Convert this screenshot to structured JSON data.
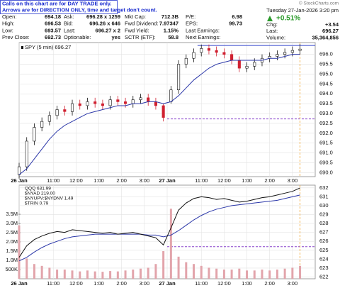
{
  "header": {
    "notice": [
      "Calls on this chart are for DAY TRADE only.",
      "Arrows are for DIRECTION ONLY, time and target don't count."
    ],
    "copyright": "© StockCharts.com",
    "date": "Tuesday  27-Jan-2026  3:20 pm",
    "change_pct": "+0.51%",
    "columns": [
      [
        [
          "Open:",
          "694.18"
        ],
        [
          "High:",
          "696.53"
        ],
        [
          "Low:",
          "693.57"
        ],
        [
          "Prev Close:",
          "692.73"
        ]
      ],
      [
        [
          "Ask:",
          "696.28 x 1259"
        ],
        [
          "Bid:",
          "696.26 x 646"
        ],
        [
          "Last:",
          "696.27 x 2"
        ],
        [
          "Optionable:",
          "yes"
        ]
      ],
      [
        [
          "Mkt Cap:",
          "712.3B"
        ],
        [
          "Fwd Dividend:",
          "7.97347"
        ],
        [
          "Fwd Yield:",
          "1.15%"
        ],
        [
          "SCTR (ETF):",
          "58.8"
        ]
      ],
      [
        [
          "P/E:",
          "6.98"
        ],
        [
          "EPS:",
          "99.73"
        ],
        [
          "Last Earnings:",
          ""
        ],
        [
          "Next Earnings:",
          ""
        ]
      ]
    ],
    "right_rows": [
      [
        "Chg:",
        "+3.54"
      ],
      [
        "Last:",
        "696.27"
      ],
      [
        "Volume:",
        "35,364,856"
      ]
    ]
  },
  "chart_data": [
    {
      "type": "candlestick",
      "legend": "SPY (5 min) 696.27",
      "x": [
        0,
        4,
        8,
        12,
        16,
        20,
        24,
        28,
        32,
        36,
        40,
        44,
        48,
        52,
        56,
        60,
        64,
        68,
        72,
        76,
        80,
        84,
        88,
        92,
        96,
        100,
        104,
        108,
        112,
        116,
        120,
        124,
        128,
        132,
        136,
        140,
        144,
        148
      ],
      "open": [
        689.9,
        690.3,
        691.6,
        692.3,
        692.6,
        692.9,
        693.2,
        693.1,
        693.5,
        693.4,
        693.6,
        693.5,
        693.4,
        693.7,
        693.6,
        693.5,
        693.7,
        693.8,
        693.6,
        693.4,
        693.6,
        694.2,
        695.5,
        695.8,
        696.1,
        696.3,
        696.2,
        696.1,
        696.0,
        695.7,
        695.3,
        695.4,
        695.6,
        695.8,
        695.9,
        696.0,
        696.1,
        696.2
      ],
      "high": [
        690.5,
        691.8,
        692.5,
        692.8,
        693.1,
        693.4,
        693.4,
        693.7,
        693.7,
        693.8,
        693.8,
        693.7,
        693.9,
        693.9,
        693.8,
        693.9,
        694.0,
        694.0,
        693.8,
        693.5,
        694.4,
        695.7,
        696.0,
        696.3,
        696.5,
        696.5,
        696.4,
        696.3,
        696.2,
        695.9,
        695.6,
        695.8,
        696.0,
        696.1,
        696.2,
        696.3,
        696.4,
        696.53
      ],
      "low": [
        689.7,
        690.1,
        691.4,
        692.1,
        692.4,
        692.7,
        692.9,
        692.9,
        693.2,
        693.2,
        693.3,
        693.2,
        693.2,
        693.4,
        693.3,
        693.3,
        693.5,
        693.4,
        693.2,
        692.6,
        693.5,
        694.0,
        695.3,
        695.6,
        695.9,
        696.0,
        695.9,
        695.8,
        695.5,
        695.1,
        695.1,
        695.2,
        695.4,
        695.6,
        695.7,
        695.8,
        695.9,
        696.0
      ],
      "close": [
        690.3,
        691.6,
        692.3,
        692.6,
        692.9,
        693.2,
        693.1,
        693.5,
        693.4,
        693.6,
        693.5,
        693.4,
        693.7,
        693.6,
        693.5,
        693.7,
        693.8,
        693.6,
        693.4,
        692.8,
        694.2,
        695.5,
        695.8,
        696.1,
        696.3,
        696.2,
        696.1,
        696.0,
        695.7,
        695.3,
        695.4,
        695.6,
        695.8,
        695.9,
        696.0,
        696.1,
        696.2,
        696.27
      ],
      "ma": {
        "color": "#2a36a8",
        "values": [
          689.9,
          690.2,
          690.7,
          691.2,
          691.7,
          692.1,
          692.4,
          692.6,
          692.8,
          693.0,
          693.1,
          693.2,
          693.3,
          693.4,
          693.4,
          693.5,
          693.5,
          693.6,
          693.6,
          693.5,
          693.6,
          693.9,
          694.3,
          694.7,
          695.0,
          695.3,
          695.5,
          695.6,
          695.7,
          695.7,
          695.7,
          695.7,
          695.7,
          695.8,
          695.8,
          695.9,
          696.0,
          696.0
        ]
      },
      "reference_lines": [
        {
          "value": 696.45,
          "x0": 94,
          "color": "#3344cc",
          "dashed": false
        },
        {
          "value": 692.73,
          "x0": 78,
          "color": "#8844cc",
          "dashed": true
        }
      ],
      "current_bar": 148,
      "xlim": [
        0,
        156
      ],
      "xticks": [
        {
          "value": 0,
          "label": "26 Jan"
        },
        {
          "value": 18,
          "label": "11:00"
        },
        {
          "value": 30,
          "label": "12:00"
        },
        {
          "value": 42,
          "label": "1:00"
        },
        {
          "value": 54,
          "label": "2:00"
        },
        {
          "value": 66,
          "label": "3:00"
        },
        {
          "value": 78,
          "label": "27 Jan"
        },
        {
          "value": 96,
          "label": "11:00"
        },
        {
          "value": 108,
          "label": "12:00"
        },
        {
          "value": 120,
          "label": "1:00"
        },
        {
          "value": 132,
          "label": "2:00"
        },
        {
          "value": 144,
          "label": "3:00"
        }
      ],
      "ylim": [
        689.8,
        696.6
      ],
      "yticks": [
        {
          "value": 690,
          "label": "690.0"
        },
        690.5,
        {
          "value": 691,
          "label": "691.0"
        },
        691.5,
        {
          "value": 692,
          "label": "692.0"
        },
        692.5,
        {
          "value": 693,
          "label": "693.0"
        },
        693.5,
        {
          "value": 694,
          "label": "694.0"
        },
        694.5,
        {
          "value": 695,
          "label": "695.0"
        },
        695.5,
        {
          "value": 696,
          "label": "696.0"
        }
      ],
      "grid": true
    },
    {
      "type": "line_volume",
      "legend": [
        "QQQ 631.99",
        "$NYAD 219.00",
        "$NYUPV:$NYDNV 1.49",
        "$TRIN 0.79"
      ],
      "x": [
        0,
        4,
        8,
        12,
        16,
        20,
        24,
        28,
        32,
        36,
        40,
        44,
        48,
        52,
        56,
        60,
        64,
        68,
        72,
        76,
        80,
        84,
        88,
        92,
        96,
        100,
        104,
        108,
        112,
        116,
        120,
        124,
        128,
        132,
        136,
        140,
        144,
        148
      ],
      "values": [
        624.2,
        625.5,
        626.2,
        626.6,
        626.9,
        627.1,
        627.0,
        627.3,
        627.2,
        627.1,
        627.0,
        626.9,
        627.0,
        626.8,
        626.9,
        627.0,
        626.8,
        626.6,
        626.4,
        625.6,
        627.5,
        629.5,
        630.3,
        630.8,
        631.0,
        630.9,
        630.7,
        630.8,
        630.6,
        630.4,
        630.5,
        630.7,
        630.9,
        631.0,
        631.2,
        631.4,
        631.6,
        631.99
      ],
      "color": "#111111",
      "ma": {
        "color": "#2a36a8",
        "values": [
          623.8,
          624.2,
          624.8,
          625.3,
          625.7,
          626.0,
          626.3,
          626.5,
          626.6,
          626.7,
          626.8,
          626.8,
          626.8,
          626.8,
          626.8,
          626.8,
          626.8,
          626.7,
          626.7,
          626.5,
          626.7,
          627.2,
          627.8,
          628.4,
          628.9,
          629.3,
          629.6,
          629.8,
          630.0,
          630.1,
          630.2,
          630.3,
          630.4,
          630.5,
          630.6,
          630.8,
          631.0,
          631.2
        ]
      },
      "volume": {
        "color": "#e2a4ab",
        "axis": "y2",
        "values": [
          2900000,
          1100000,
          800000,
          700000,
          600000,
          500000,
          500000,
          450000,
          400000,
          450000,
          400000,
          380000,
          420000,
          400000,
          450000,
          500000,
          550000,
          600000,
          800000,
          1500000,
          3800000,
          1200000,
          900000,
          800000,
          700000,
          600000,
          550000,
          500000,
          500000,
          550000,
          450000,
          450000,
          500000,
          450000,
          500000,
          550000,
          600000,
          700000
        ]
      },
      "reference_lines": [
        {
          "value": 625.4,
          "x0": 78,
          "color": "#8844cc",
          "dashed": true
        }
      ],
      "current_bar": 148,
      "xlim": [
        0,
        156
      ],
      "xticks": [
        {
          "value": 0,
          "label": "26 Jan"
        },
        {
          "value": 18,
          "label": "11:00"
        },
        {
          "value": 30,
          "label": "12:00"
        },
        {
          "value": 42,
          "label": "1:00"
        },
        {
          "value": 54,
          "label": "2:00"
        },
        {
          "value": 66,
          "label": "3:00"
        },
        {
          "value": 78,
          "label": "27 Jan"
        },
        {
          "value": 96,
          "label": "11:00"
        },
        {
          "value": 108,
          "label": "12:00"
        },
        {
          "value": 120,
          "label": "1:00"
        },
        {
          "value": 132,
          "label": "2:00"
        },
        {
          "value": 144,
          "label": "3:00"
        }
      ],
      "ylim": [
        621.8,
        632.3
      ],
      "yticks": [
        622,
        623,
        624,
        625,
        626,
        627,
        628,
        629,
        630,
        631,
        632
      ],
      "y2lim": [
        0,
        5080000
      ],
      "y2ticks": [
        {
          "value": 500000,
          "label": "500K"
        },
        {
          "value": 1000000,
          "label": "1.0M"
        },
        {
          "value": 1500000,
          "label": "1.5M"
        },
        {
          "value": 2000000,
          "label": "2.0M"
        },
        {
          "value": 2500000,
          "label": "2.5M"
        },
        {
          "value": 3000000,
          "label": "3.0M"
        },
        {
          "value": 3500000,
          "label": "3.5M"
        }
      ],
      "grid": true
    }
  ]
}
